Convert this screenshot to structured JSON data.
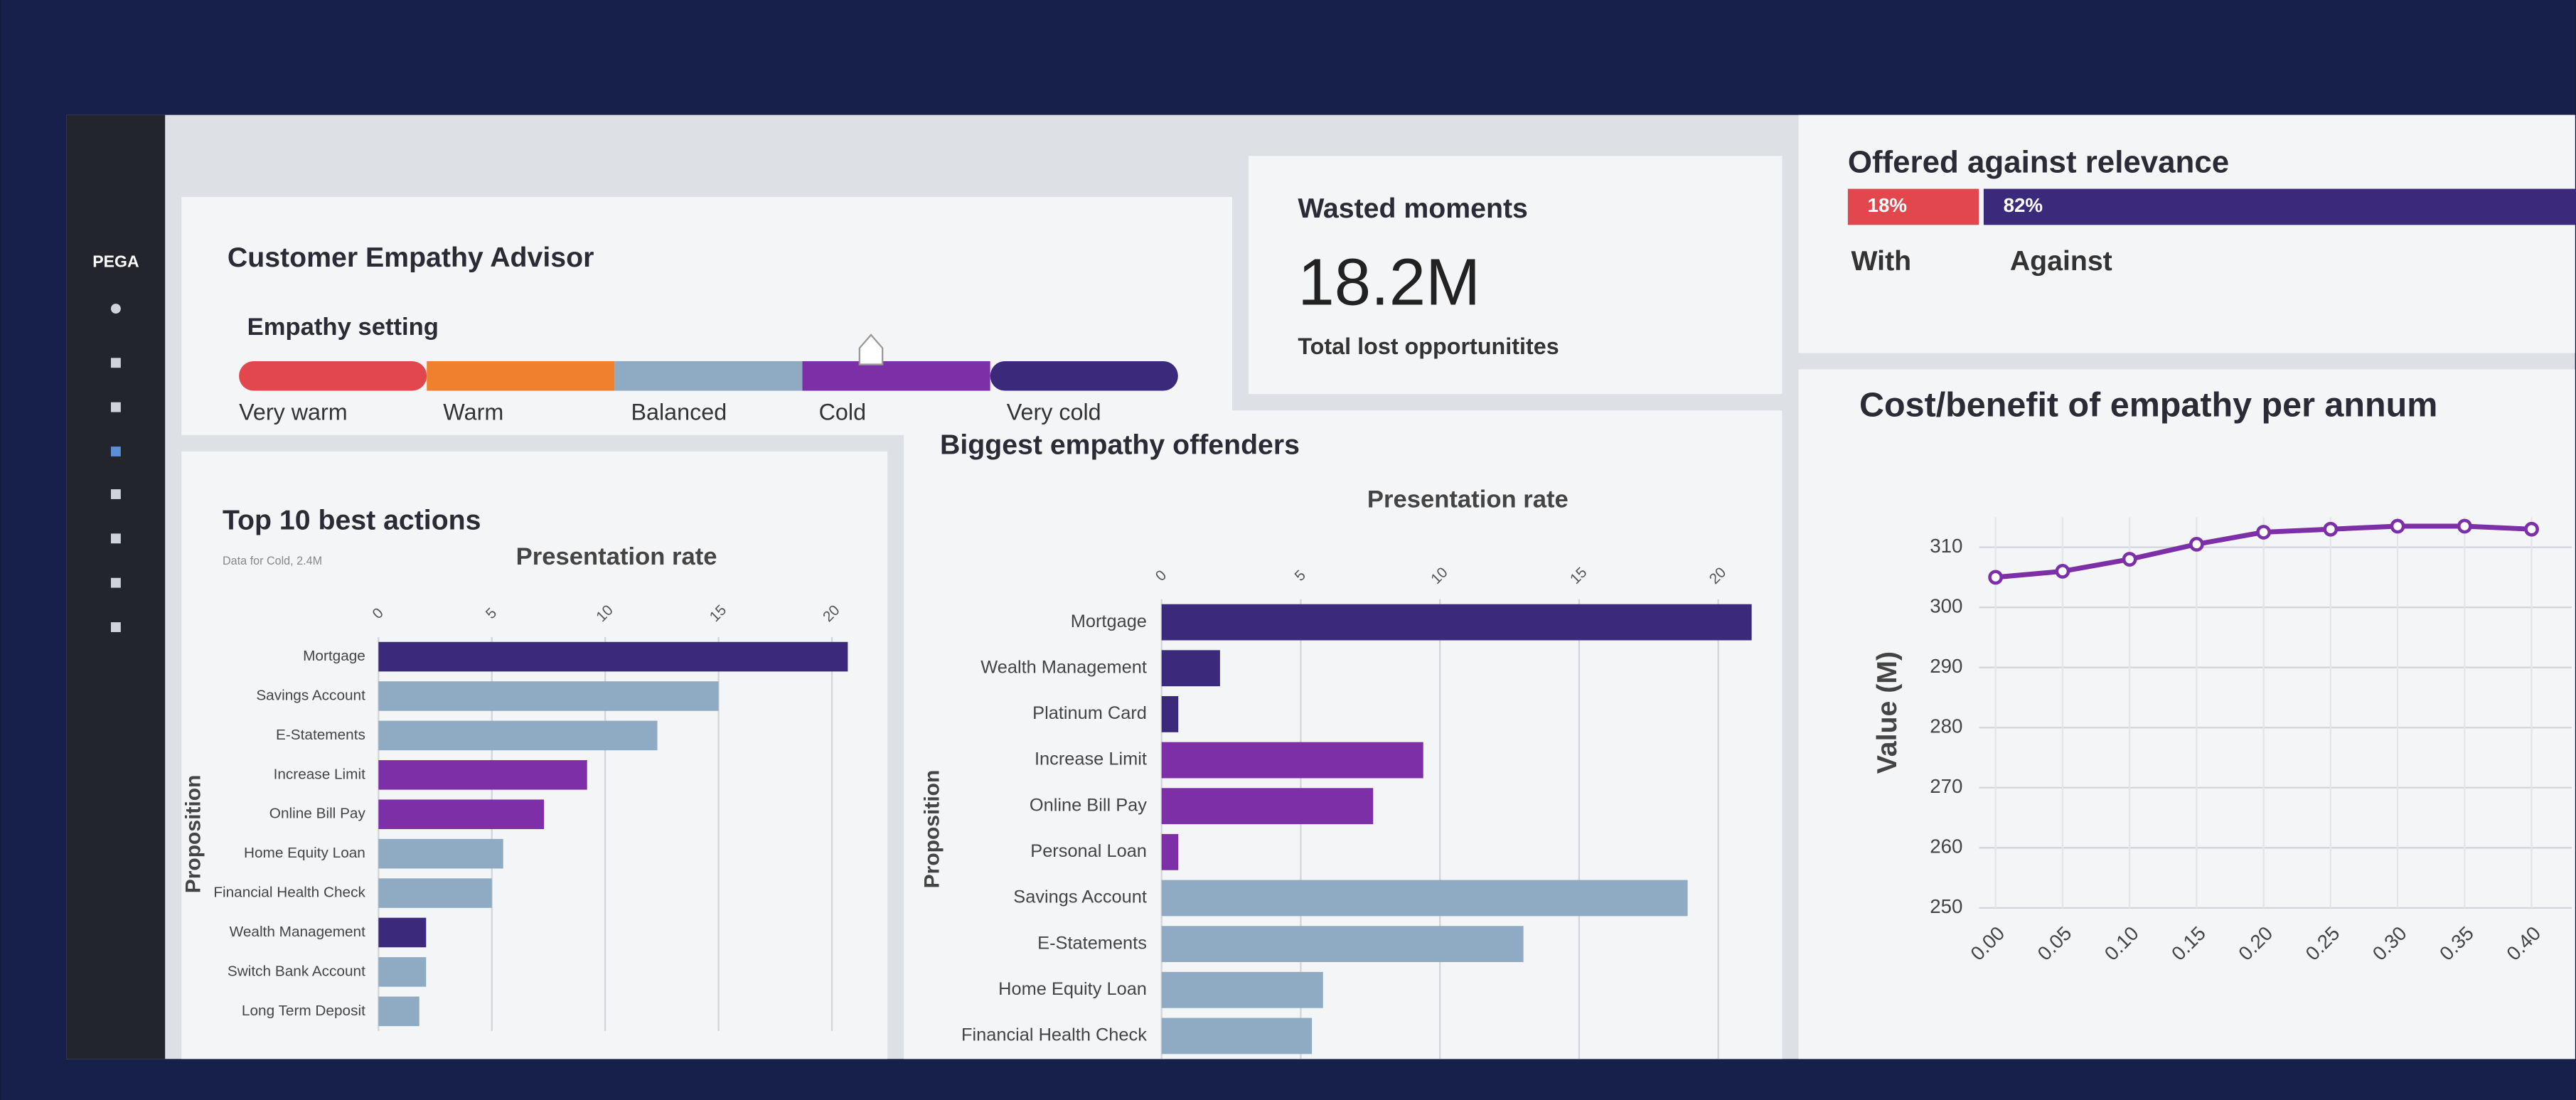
{
  "sidebar": {
    "brand": "PEGA"
  },
  "advisor": {
    "title": "Customer Empathy Advisor",
    "setting_label": "Empathy setting",
    "levels": [
      {
        "name": "Very warm",
        "color": "#e2474d"
      },
      {
        "name": "Warm",
        "color": "#f0802e"
      },
      {
        "name": "Balanced",
        "color": "#8eabc3"
      },
      {
        "name": "Cold",
        "color": "#7d2fa8"
      },
      {
        "name": "Very cold",
        "color": "#3b2a7c"
      }
    ]
  },
  "wasted": {
    "title": "Wasted moments",
    "value": "18.2M",
    "caption": "Total lost opportunitites"
  },
  "relevance": {
    "title": "Offered against relevance",
    "segments": [
      {
        "name": "With",
        "value": 18,
        "label": "18%",
        "color": "#e2474d"
      },
      {
        "name": "Against",
        "value": 82,
        "label": "82%",
        "color": "#3b2a7c"
      }
    ]
  },
  "charts": [
    {
      "type": "bar",
      "title": "Top 10 best actions",
      "subtitle": "Data for Cold, 2.4M",
      "xlabel": "Presentation rate",
      "ylabel": "Proposition",
      "categories": [
        "Mortgage",
        "Savings Account",
        "E-Statements",
        "Increase Limit",
        "Online Bill Pay",
        "Home Equity Loan",
        "Financial Health Check",
        "Wealth Management",
        "Switch Bank Account",
        "Long Term Deposit"
      ],
      "values": [
        20.7,
        15,
        12.3,
        9.2,
        7.3,
        5.5,
        5,
        2.1,
        2.1,
        1.8
      ],
      "colors": [
        "#3b2a7c",
        "#8eabc3",
        "#8eabc3",
        "#7d2fa8",
        "#7d2fa8",
        "#8eabc3",
        "#8eabc3",
        "#3b2a7c",
        "#8eabc3",
        "#8eabc3"
      ],
      "xlim": [
        0,
        21
      ],
      "xticks": [
        0,
        5,
        10,
        15,
        20
      ]
    },
    {
      "type": "bar",
      "title": "Biggest empathy offenders",
      "xlabel": "Presentation rate",
      "ylabel": "Proposition",
      "categories": [
        "Mortgage",
        "Wealth Management",
        "Platinum Card",
        "Increase Limit",
        "Online Bill Pay",
        "Personal Loan",
        "Savings Account",
        "E-Statements",
        "Home Equity Loan",
        "Financial Health Check"
      ],
      "values": [
        21.2,
        2.1,
        0.6,
        9.4,
        7.6,
        0.6,
        18.9,
        13,
        5.8,
        5.4
      ],
      "colors": [
        "#3b2a7c",
        "#3b2a7c",
        "#3b2a7c",
        "#7d2fa8",
        "#7d2fa8",
        "#7d2fa8",
        "#8eabc3",
        "#8eabc3",
        "#8eabc3",
        "#8eabc3"
      ],
      "xlim": [
        0,
        22
      ],
      "xticks": [
        0,
        5,
        10,
        15,
        20
      ]
    },
    {
      "type": "line",
      "title": "Cost/benefit of empathy per annum",
      "ylabel": "Value (M)",
      "x": [
        0,
        0.05,
        0.1,
        0.15,
        0.2,
        0.25,
        0.3,
        0.35,
        0.4
      ],
      "values": [
        305,
        306,
        308,
        310.5,
        312.5,
        313,
        313.5,
        313.5,
        313
      ],
      "color": "#7d2fa8",
      "xlim": [
        0,
        0.43
      ],
      "xticks": [
        {
          "value": 0,
          "label": "0.00"
        },
        {
          "value": 0.05,
          "label": "0.05"
        },
        {
          "value": 0.1,
          "label": "0.10"
        },
        {
          "value": 0.15,
          "label": "0.15"
        },
        {
          "value": 0.2,
          "label": "0.20"
        },
        {
          "value": 0.25,
          "label": "0.25"
        },
        {
          "value": 0.3,
          "label": "0.30"
        },
        {
          "value": 0.35,
          "label": "0.35"
        },
        {
          "value": 0.4,
          "label": "0.40"
        }
      ],
      "ylim": [
        250,
        315
      ],
      "yticks": [
        250,
        260,
        270,
        280,
        290,
        300,
        310
      ],
      "grid": true
    }
  ]
}
